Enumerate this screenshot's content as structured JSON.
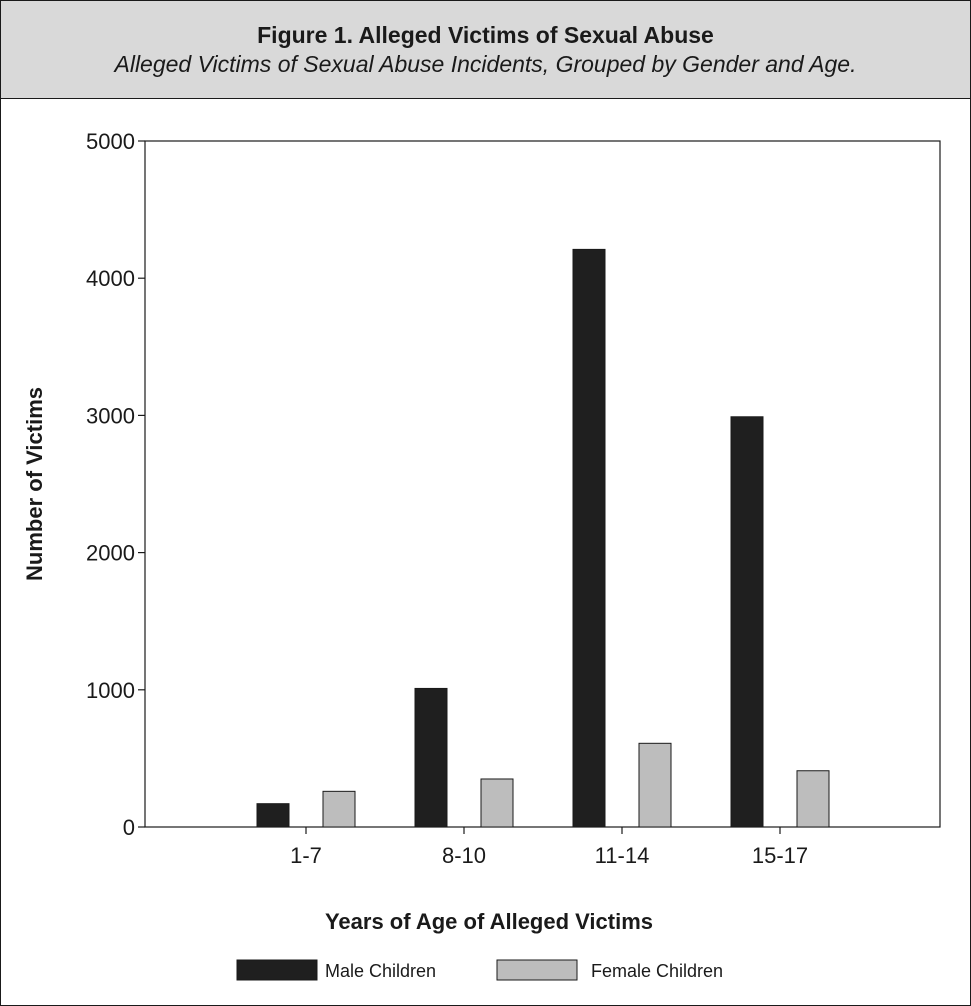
{
  "figure": {
    "title": "Figure 1. Alleged Victims of Sexual Abuse",
    "subtitle": "Alleged Victims of Sexual Abuse Incidents, Grouped by Gender and Age."
  },
  "chart_data": {
    "type": "bar",
    "categories": [
      "1-7",
      "8-10",
      "11-14",
      "15-17"
    ],
    "series": [
      {
        "name": "Male Children",
        "color": "#1f1f1f",
        "values": [
          170,
          1010,
          4210,
          2990
        ]
      },
      {
        "name": "Female Children",
        "color": "#bdbdbd",
        "values": [
          260,
          350,
          610,
          410
        ]
      }
    ],
    "xlabel": "Years of Age of Alleged Victims",
    "ylabel": "Number of Victims",
    "ylim": [
      0,
      5000
    ],
    "yticks": [
      0,
      1000,
      2000,
      3000,
      4000,
      5000
    ],
    "grid": false,
    "legend_position": "bottom-center"
  }
}
